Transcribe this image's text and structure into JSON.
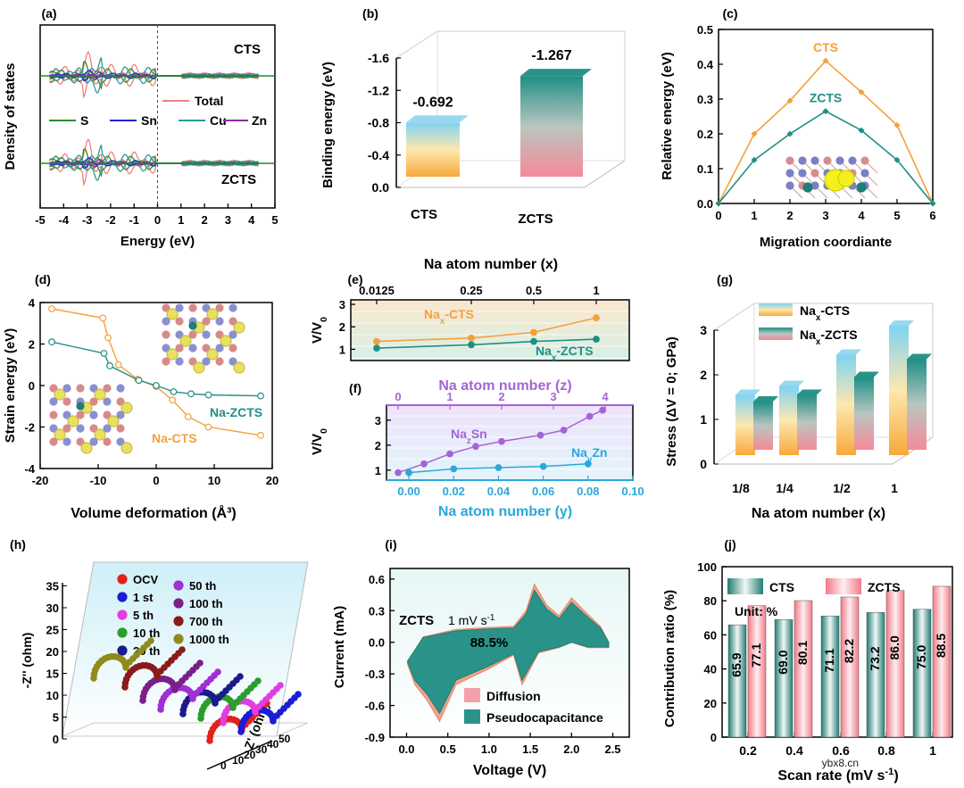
{
  "chart_data": [
    {
      "id": "a",
      "type": "line",
      "panel_label": "(a)",
      "xlabel": "Energy (eV)",
      "ylabel": "Density of states",
      "xlim": [
        -5,
        5
      ],
      "xticks": [
        "-5",
        "-4",
        "-3",
        "-2",
        "-1",
        "0",
        "1",
        "2",
        "3",
        "4",
        "5"
      ],
      "labels": [
        "CTS",
        "ZCTS"
      ],
      "legend": [
        "Total",
        "S",
        "Sn",
        "Cu",
        "Zn"
      ],
      "colors": {
        "Total": "#f08080",
        "S": "#2e8b2e",
        "Sn": "#1f24d6",
        "Cu": "#2a9d8f",
        "Zn": "#8b2fa0"
      }
    },
    {
      "id": "b",
      "type": "bar",
      "panel_label": "(b)",
      "ylabel": "Binding energy (eV)",
      "categories": [
        "CTS",
        "ZCTS"
      ],
      "values": [
        -0.692,
        -1.267
      ],
      "value_labels": [
        "-0.692",
        "-1.267"
      ],
      "ylim": [
        0.0,
        -1.6
      ],
      "yticks": [
        "0.0",
        "-0.4",
        "-0.8",
        "-1.2",
        "-1.6"
      ]
    },
    {
      "id": "c",
      "type": "line",
      "panel_label": "(c)",
      "xlabel": "Migration coordiante",
      "ylabel": "Relative energy (eV)",
      "x": [
        0,
        1,
        2,
        3,
        4,
        5,
        6
      ],
      "xlim": [
        0,
        6
      ],
      "ylim": [
        0,
        0.5
      ],
      "xticks": [
        "0",
        "1",
        "2",
        "3",
        "4",
        "5",
        "6"
      ],
      "yticks": [
        "0.0",
        "0.1",
        "0.2",
        "0.3",
        "0.4",
        "0.5"
      ],
      "series": [
        {
          "name": "CTS",
          "color": "#f5a03c",
          "values": [
            0,
            0.2,
            0.295,
            0.41,
            0.32,
            0.225,
            0
          ]
        },
        {
          "name": "ZCTS",
          "color": "#1f8f86",
          "values": [
            0,
            0.125,
            0.2,
            0.265,
            0.21,
            0.125,
            0
          ]
        }
      ]
    },
    {
      "id": "d",
      "type": "line",
      "panel_label": "(d)",
      "xlabel": "Volume deformation (Å³)",
      "ylabel": "Strain energy (eV)",
      "xlim": [
        -20,
        20
      ],
      "ylim": [
        -4,
        4
      ],
      "xticks": [
        "-20",
        "-10",
        "0",
        "10",
        "20"
      ],
      "yticks": [
        "-4",
        "-2",
        "0",
        "2",
        "4"
      ],
      "series": [
        {
          "name": "Na-CTS",
          "color": "#f5a03c",
          "x": [
            -18,
            -9.2,
            -8.3,
            -6.5,
            -3.2,
            0,
            2.8,
            5.5,
            9,
            18
          ],
          "values": [
            3.7,
            3.25,
            2.3,
            1.0,
            0.3,
            -0.05,
            -0.7,
            -1.5,
            -2.0,
            -2.4
          ]
        },
        {
          "name": "Na-ZCTS",
          "color": "#1f8f86",
          "x": [
            -18,
            -9,
            -8,
            -3,
            0,
            3,
            6,
            9,
            18
          ],
          "values": [
            2.1,
            1.55,
            0.95,
            0.25,
            0,
            -0.3,
            -0.4,
            -0.45,
            -0.5
          ]
        }
      ]
    },
    {
      "id": "e",
      "type": "line",
      "panel_label": "(e)",
      "xlabel_top": "Na atom number (x)",
      "ylabel": "V/V",
      "ylabel_sub": "0",
      "categories": [
        "0.0125",
        "0.25",
        "0.5",
        "1"
      ],
      "ylim": [
        0.5,
        3.2
      ],
      "yticks": [
        "1",
        "2",
        "3"
      ],
      "series": [
        {
          "name": "Na",
          "name_sub": "x",
          "name_suffix": "-CTS",
          "color": "#f5a03c",
          "values": [
            1.35,
            1.5,
            1.75,
            2.4
          ]
        },
        {
          "name": "Na",
          "name_sub": "x",
          "name_suffix": "-ZCTS",
          "color": "#1f8f86",
          "values": [
            1.05,
            1.2,
            1.35,
            1.45
          ]
        }
      ]
    },
    {
      "id": "f",
      "type": "line",
      "panel_label": "(f)",
      "xlabel_top": "Na atom number (z)",
      "xlabel": "Na atom number (y)",
      "ylabel": "V/V",
      "ylabel_sub": "0",
      "xlim_top": [
        0,
        4
      ],
      "xticks_top": [
        "0",
        "1",
        "2",
        "3",
        "4"
      ],
      "xlim": [
        -0.01,
        0.1
      ],
      "xticks": [
        "0.00",
        "0.02",
        "0.04",
        "0.06",
        "0.08",
        "0.10"
      ],
      "ylim": [
        0.6,
        3.6
      ],
      "yticks": [
        "1",
        "2",
        "3"
      ],
      "series": [
        {
          "name": "Na",
          "name_sub": "z",
          "name_suffix": "Sn",
          "color": "#a564d6",
          "axis": "top",
          "x": [
            0,
            0.5,
            1,
            1.5,
            2,
            2.75,
            3.2,
            3.7,
            3.95
          ],
          "values": [
            0.9,
            1.25,
            1.65,
            1.95,
            2.15,
            2.4,
            2.6,
            3.15,
            3.4
          ]
        },
        {
          "name": "Na",
          "name_sub": "y",
          "name_suffix": "Zn",
          "color": "#2aa8dc",
          "axis": "bottom",
          "x": [
            0,
            0.02,
            0.04,
            0.06,
            0.08
          ],
          "values": [
            0.9,
            1.05,
            1.1,
            1.15,
            1.25
          ]
        }
      ]
    },
    {
      "id": "g",
      "type": "bar",
      "panel_label": "(g)",
      "xlabel": "Na atom number (x)",
      "ylabel": "Stress (ΔV = 0; GPa)",
      "categories": [
        "1/8",
        "1/4",
        "1/2",
        "1"
      ],
      "ylim": [
        0,
        3
      ],
      "yticks": [
        "0",
        "1",
        "2",
        "3"
      ],
      "series": [
        {
          "name": "Na",
          "name_sub": "x",
          "name_suffix": "-CTS",
          "values": [
            1.35,
            1.55,
            2.25,
            2.9
          ]
        },
        {
          "name": "Na",
          "name_sub": "x",
          "name_suffix": "-ZCTS",
          "values": [
            1.2,
            1.35,
            1.75,
            2.15
          ]
        }
      ]
    },
    {
      "id": "h",
      "type": "scatter",
      "panel_label": "(h)",
      "xlabel": "Z' (ohm)",
      "ylabel": "-Z'' (ohm)",
      "yticks": [
        "0",
        "5",
        "10",
        "15",
        "20",
        "25",
        "30",
        "35"
      ],
      "xticks": [
        "0",
        "10",
        "20",
        "30",
        "40",
        "50"
      ],
      "legend": [
        "OCV",
        "1 st",
        "5 th",
        "10 th",
        "20 th",
        "50 th",
        "100 th",
        "700 th",
        "1000 th"
      ],
      "colors": [
        "#e0221b",
        "#1c1cd6",
        "#e23de0",
        "#2a9d2a",
        "#1a1a8c",
        "#a02fd6",
        "#7a1f8a",
        "#8b1a1a",
        "#8f8a1a"
      ]
    },
    {
      "id": "i",
      "type": "area",
      "panel_label": "(i)",
      "xlabel": "Voltage (V)",
      "ylabel": "Current (mA)",
      "xlim": [
        -0.2,
        2.7
      ],
      "ylim": [
        -0.9,
        0.7
      ],
      "xticks": [
        "0.0",
        "0.5",
        "1.0",
        "1.5",
        "2.0",
        "2.5"
      ],
      "yticks": [
        "-0.9",
        "-0.6",
        "-0.3",
        "0.0",
        "0.3",
        "0.6"
      ],
      "label": "ZCTS",
      "rate": "1 mV s",
      "rate_sup": "-1",
      "percent": "88.5%",
      "legend": [
        "Diffusion",
        "Pseudocapacitance"
      ]
    },
    {
      "id": "j",
      "type": "bar",
      "panel_label": "(j)",
      "xlabel": "Scan rate (mV s",
      "xlabel_sup": "-1",
      "xlabel_end": ")",
      "ylabel": "Contribution ratio (%)",
      "categories": [
        "0.2",
        "0.4",
        "0.6",
        "0.8",
        "1"
      ],
      "ylim": [
        0,
        100
      ],
      "yticks": [
        "0",
        "20",
        "40",
        "60",
        "80",
        "100"
      ],
      "unit_label": "Unit: %",
      "series": [
        {
          "name": "CTS",
          "values": [
            65.9,
            69.0,
            71.1,
            73.2,
            75.0
          ],
          "labels": [
            "65.9",
            "69.0",
            "71.1",
            "73.2",
            "75.0"
          ]
        },
        {
          "name": "ZCTS",
          "values": [
            77.1,
            80.1,
            82.2,
            86.0,
            88.5
          ],
          "labels": [
            "77.1",
            "80.1",
            "82.2",
            "86.0",
            "88.5"
          ]
        }
      ]
    }
  ],
  "watermark": "ybx8.cn"
}
